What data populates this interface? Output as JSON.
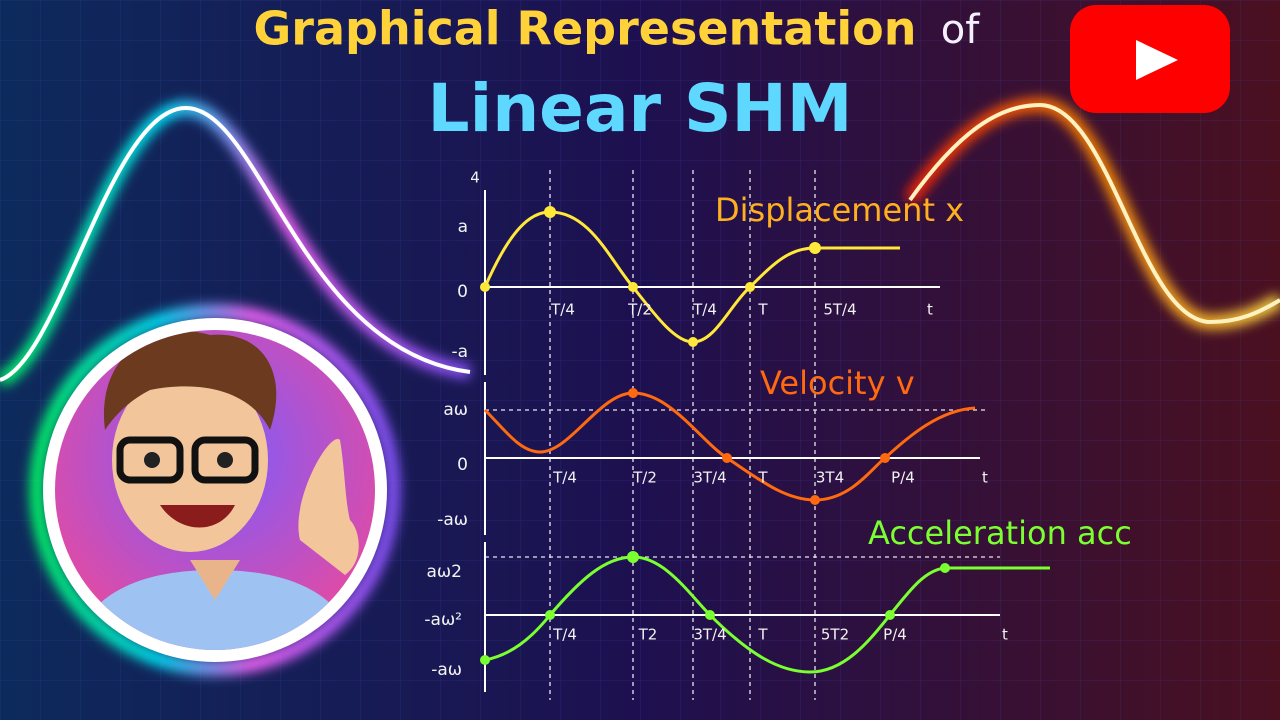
{
  "title": {
    "line1": "Graphical Representation",
    "of": "of",
    "line2": "Linear SHM"
  },
  "top_axis_label": "4",
  "graphs": [
    {
      "label": "Displacement x",
      "y_labels": [
        "a",
        "0",
        "-a"
      ],
      "x_labels": [
        "T/4",
        "T/2",
        "T/4",
        "T",
        "5T/4",
        "t"
      ]
    },
    {
      "label": "Velocity v",
      "y_labels": [
        "aω",
        "0",
        "-aω"
      ],
      "x_labels": [
        "T/4",
        "T/2",
        "3T/4",
        "T",
        "3T4",
        "P/4",
        "t"
      ]
    },
    {
      "label": "Acceleration acc",
      "y_labels": [
        "aω2",
        "-aω²",
        "-aω"
      ],
      "x_labels": [
        "T/4",
        "T2",
        "3T/4",
        "T",
        "5T2",
        "P/4",
        "t"
      ]
    }
  ]
}
